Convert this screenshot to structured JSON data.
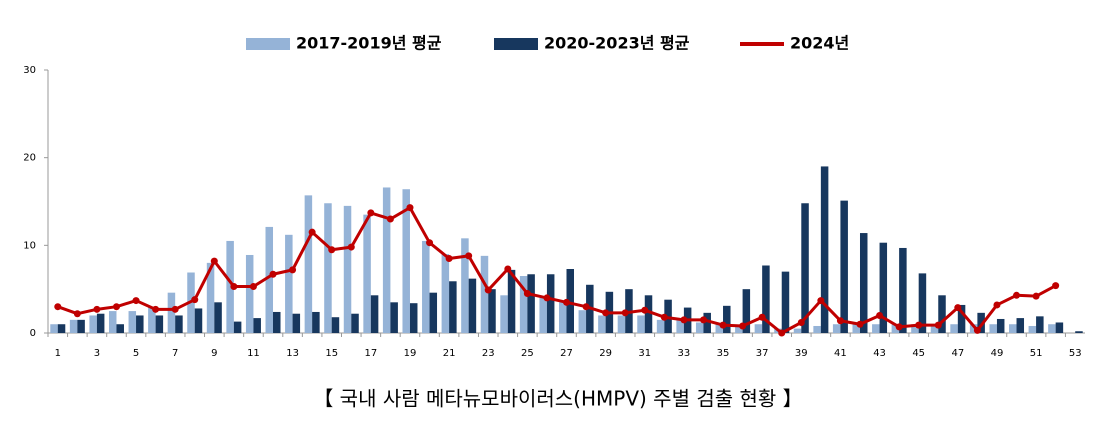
{
  "chart_data": {
    "type": "bar-line",
    "caption": "【 국내 사람 메타뉴모바이러스(HMPV) 주별 검출 현황 】",
    "categories": [
      1,
      null,
      3,
      null,
      5,
      null,
      7,
      null,
      9,
      null,
      11,
      null,
      13,
      null,
      15,
      null,
      17,
      null,
      19,
      null,
      21,
      null,
      23,
      null,
      25,
      null,
      27,
      null,
      29,
      null,
      31,
      null,
      33,
      null,
      35,
      null,
      37,
      null,
      39,
      null,
      41,
      null,
      43,
      null,
      45,
      null,
      47,
      null,
      49,
      null,
      51,
      null,
      53
    ],
    "series": [
      {
        "name": "2017-2019년 평균",
        "type": "bar",
        "color": "#95b3d7",
        "values": [
          1.0,
          1.5,
          2.0,
          2.5,
          2.5,
          3.0,
          4.6,
          6.9,
          8.0,
          10.5,
          8.9,
          12.1,
          11.2,
          15.7,
          14.8,
          14.5,
          13.5,
          16.6,
          16.4,
          10.5,
          9.0,
          10.8,
          8.8,
          4.3,
          6.5,
          4.0,
          3.5,
          2.6,
          2.0,
          2.0,
          2.0,
          1.5,
          1.5,
          1.2,
          1.0,
          0.8,
          1.0,
          0.5,
          0.5,
          0.8,
          1.0,
          1.0,
          1.0,
          1.0,
          1.0,
          1.0,
          1.0,
          1.0,
          1.0,
          1.0,
          0.8,
          1.0,
          0
        ]
      },
      {
        "name": "2020-2023년 평균",
        "type": "bar",
        "color": "#17375e",
        "values": [
          1.0,
          1.5,
          2.2,
          1.0,
          2.0,
          2.0,
          2.0,
          2.8,
          3.5,
          1.3,
          1.7,
          2.4,
          2.2,
          2.4,
          1.8,
          2.2,
          4.3,
          3.5,
          3.4,
          4.6,
          5.9,
          6.2,
          5.0,
          7.2,
          6.7,
          6.7,
          7.3,
          5.5,
          4.7,
          5.0,
          4.3,
          3.8,
          2.9,
          2.3,
          3.1,
          5.0,
          7.7,
          7.0,
          14.8,
          19.0,
          15.1,
          11.4,
          10.3,
          9.7,
          6.8,
          4.3,
          3.2,
          2.3,
          1.6,
          1.7,
          1.9,
          1.2,
          0.2
        ]
      },
      {
        "name": "2024년",
        "type": "line",
        "color": "#c00000",
        "values": [
          3.0,
          2.2,
          2.7,
          3.0,
          3.7,
          2.7,
          2.7,
          3.8,
          8.2,
          5.3,
          5.3,
          6.7,
          7.2,
          11.5,
          9.5,
          9.8,
          13.7,
          13.0,
          14.3,
          10.3,
          8.5,
          8.8,
          4.9,
          7.3,
          4.5,
          4.0,
          3.5,
          3.0,
          2.3,
          2.3,
          2.6,
          1.8,
          1.5,
          1.5,
          0.9,
          0.8,
          1.8,
          0.0,
          1.2,
          3.7,
          1.4,
          1.0,
          2.0,
          0.7,
          0.9,
          0.9,
          2.9,
          0.3,
          3.2,
          4.3,
          4.2,
          5.4,
          null
        ]
      }
    ],
    "ylim": [
      0,
      30
    ],
    "yticks": [
      0,
      10,
      20,
      30
    ],
    "grid": false,
    "legend": "top"
  }
}
